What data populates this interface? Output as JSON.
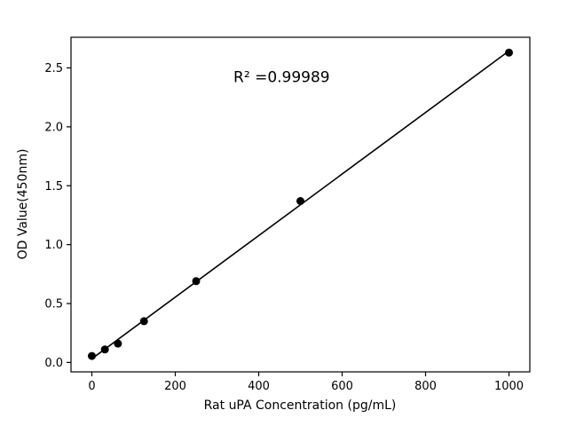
{
  "chart_data": {
    "type": "scatter",
    "x": [
      0,
      31.25,
      62.5,
      125,
      250,
      500,
      1000
    ],
    "y": [
      0.055,
      0.11,
      0.16,
      0.35,
      0.69,
      1.37,
      2.63
    ],
    "title": "",
    "xlabel": "Rat uPA Concentration (pg/mL)",
    "ylabel": "OD Value(450nm)",
    "xlim": [
      -50,
      1050
    ],
    "ylim": [
      -0.08,
      2.76
    ],
    "xticks": [
      0,
      200,
      400,
      600,
      800,
      1000
    ],
    "yticks": [
      0.0,
      0.5,
      1.0,
      1.5,
      2.0,
      2.5
    ],
    "xtick_labels": [
      "0",
      "200",
      "400",
      "600",
      "800",
      "1000"
    ],
    "ytick_labels": [
      "0.0",
      "0.5",
      "1.0",
      "1.5",
      "2.0",
      "2.5"
    ],
    "grid": false,
    "legend": "none",
    "fit_line": true,
    "marker_color": "#000000",
    "line_color": "#000000",
    "annotation": {
      "text": "R² =0.99989",
      "x": 455,
      "y": 2.38
    }
  }
}
